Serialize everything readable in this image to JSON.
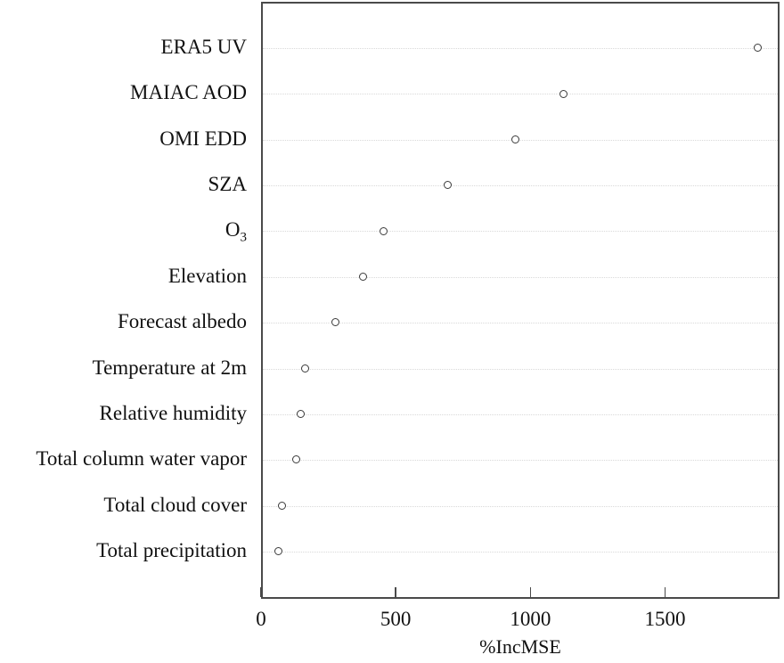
{
  "figure": {
    "background_color": "#ffffff",
    "box_border_color": "#4a4a4a",
    "grid_color": "#d9d9d9",
    "point_stroke_color": "#3a3a3a",
    "point_fill_color": "#ffffff",
    "text_color": "#111111"
  },
  "chart_data": {
    "type": "scatter",
    "subtype": "cleveland-dot-plot",
    "title": "",
    "xlabel": "%IncMSE",
    "ylabel": "",
    "xlim": [
      0,
      1925
    ],
    "x_ticks": [
      0,
      500,
      1000,
      1500
    ],
    "x_tick_labels": [
      "0",
      "500",
      "1000",
      "1500"
    ],
    "grid": "horizontal-dotted",
    "legend": "none",
    "marker": "open-circle",
    "categories": [
      "ERA5 UV",
      "MAIAC AOD",
      "OMI EDD",
      "SZA",
      "O₃",
      "Elevation",
      "Forecast albedo",
      "Temperature at 2m",
      "Relative humidity",
      "Total column water vapor",
      "Total cloud cover",
      "Total precipitation"
    ],
    "values": [
      1845,
      1125,
      945,
      695,
      455,
      380,
      277,
      166,
      149,
      130,
      80,
      67
    ]
  }
}
